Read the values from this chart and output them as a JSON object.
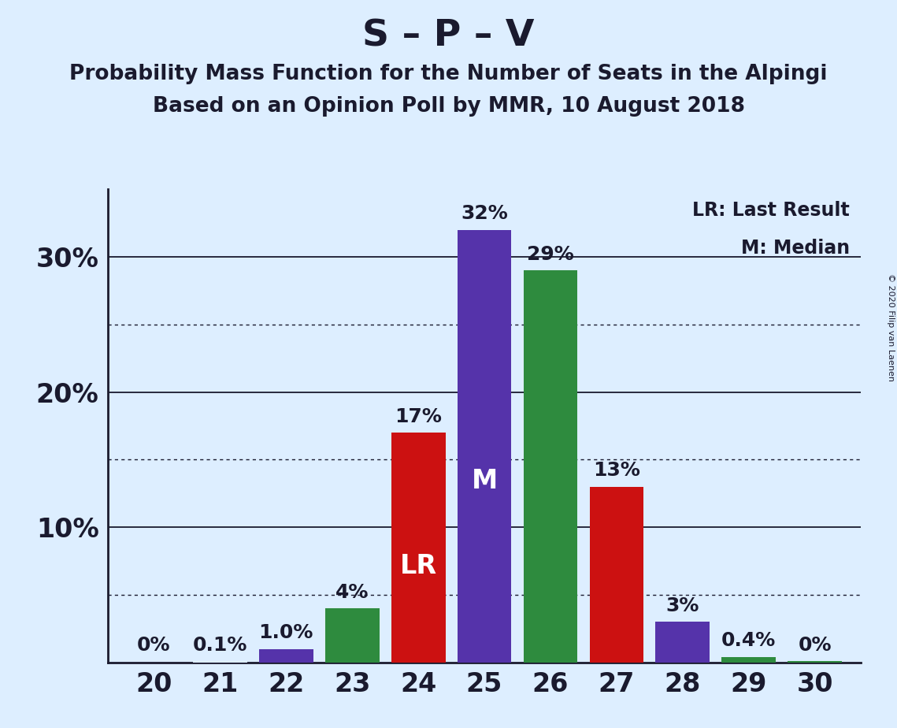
{
  "title": "S – P – V",
  "subtitle1": "Probability Mass Function for the Number of Seats in the Alpingi",
  "subtitle2": "Based on an Opinion Poll by MMR, 10 August 2018",
  "copyright": "© 2020 Filip van Laenen",
  "seats": [
    20,
    21,
    22,
    23,
    24,
    25,
    26,
    27,
    28,
    29,
    30
  ],
  "values": [
    0.0,
    0.1,
    1.0,
    4.0,
    17.0,
    32.0,
    29.0,
    13.0,
    3.0,
    0.4,
    0.0
  ],
  "labels": [
    "0%",
    "0.1%",
    "1.0%",
    "4%",
    "17%",
    "32%",
    "29%",
    "13%",
    "3%",
    "0.4%",
    "0%"
  ],
  "bar_colors": [
    "#ddeeff",
    "#ddeeff",
    "#5533aa",
    "#2e8b3e",
    "#cc1111",
    "#5533aa",
    "#2e8b3e",
    "#cc1111",
    "#5533aa",
    "#2e8b3e",
    "#ddeeff"
  ],
  "tiny_bar_height": 0.18,
  "lr_seat": 24,
  "median_seat": 25,
  "lr_label": "LR",
  "median_label": "M",
  "legend_lr": "LR: Last Result",
  "legend_m": "M: Median",
  "background_color": "#ddeeff",
  "ylim": [
    0,
    35
  ],
  "yticks": [
    10,
    20,
    30
  ],
  "ytick_labels": [
    "10%",
    "20%",
    "30%"
  ],
  "solid_gridlines": [
    10,
    20,
    30
  ],
  "dotted_gridlines": [
    5,
    15,
    25
  ],
  "bar_label_fontsize": 18,
  "title_fontsize": 34,
  "subtitle_fontsize": 19,
  "axis_tick_fontsize": 24,
  "legend_fontsize": 17,
  "lr_m_fontsize": 24
}
